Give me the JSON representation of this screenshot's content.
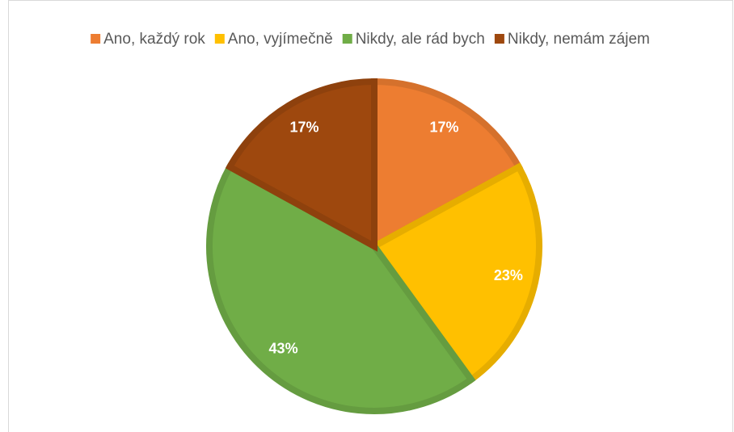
{
  "chart_data": {
    "type": "pie",
    "categories": [
      "Ano, každý rok",
      "Ano, vyjímečně",
      "Nikdy, ale rád bych",
      "Nikdy, nemám zájem"
    ],
    "values": [
      17,
      23,
      43,
      17
    ],
    "value_labels": [
      "17%",
      "23%",
      "43%",
      "17%"
    ],
    "colors": [
      "#ED7D31",
      "#FFC000",
      "#70AD47",
      "#9E480E"
    ],
    "legend": "top"
  }
}
